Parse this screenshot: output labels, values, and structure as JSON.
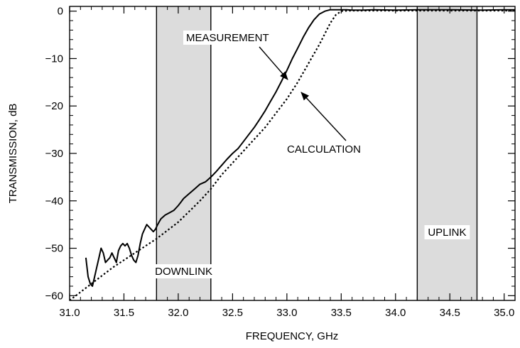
{
  "chart_data": {
    "type": "line",
    "title": "",
    "xlabel": "FREQUENCY, GHz",
    "ylabel": "TRANSMISSION, dB",
    "xlim": [
      31.0,
      35.1
    ],
    "ylim": [
      -61,
      1
    ],
    "x_ticks": [
      "31.0",
      "31.5",
      "32.0",
      "32.5",
      "33.0",
      "33.5",
      "34.0",
      "34.5",
      "35.0"
    ],
    "y_ticks": [
      "0",
      "−10",
      "−20",
      "−30",
      "−40",
      "−50",
      "−60"
    ],
    "grid": false,
    "bands": [
      {
        "label": "DOWNLINK",
        "x_start": 31.8,
        "x_end": 32.3,
        "color": "#dcdcdc"
      },
      {
        "label": "UPLINK",
        "x_start": 34.2,
        "x_end": 34.75,
        "color": "#dcdcdc"
      }
    ],
    "series": [
      {
        "name": "MEASUREMENT",
        "style": "solid",
        "color": "#000000",
        "x": [
          31.15,
          31.17,
          31.19,
          31.21,
          31.23,
          31.25,
          31.27,
          31.29,
          31.31,
          31.33,
          31.35,
          31.37,
          31.39,
          31.41,
          31.43,
          31.45,
          31.47,
          31.49,
          31.51,
          31.53,
          31.55,
          31.57,
          31.59,
          31.61,
          31.63,
          31.65,
          31.67,
          31.69,
          31.71,
          31.73,
          31.75,
          31.77,
          31.79,
          31.81,
          31.84,
          31.88,
          31.92,
          31.96,
          32.0,
          32.05,
          32.1,
          32.15,
          32.2,
          32.25,
          32.3,
          32.35,
          32.4,
          32.45,
          32.5,
          32.55,
          32.6,
          32.65,
          32.7,
          32.75,
          32.8,
          32.85,
          32.9,
          32.95,
          33.0,
          33.05,
          33.1,
          33.15,
          33.2,
          33.25,
          33.3,
          33.35,
          33.4,
          33.43,
          33.46,
          33.5,
          33.55,
          33.6,
          33.7,
          33.8,
          34.0,
          34.2,
          34.5,
          34.8,
          35.0,
          35.1
        ],
        "y": [
          -52.0,
          -56.0,
          -57.5,
          -58.0,
          -56.0,
          -54.0,
          -52.0,
          -50.0,
          -51.0,
          -53.0,
          -52.5,
          -52.0,
          -51.0,
          -52.0,
          -53.0,
          -50.5,
          -49.5,
          -49.0,
          -49.5,
          -49.0,
          -50.0,
          -51.5,
          -52.5,
          -53.0,
          -51.5,
          -49.0,
          -47.0,
          -46.0,
          -45.0,
          -45.5,
          -46.0,
          -46.5,
          -46.0,
          -45.0,
          -43.8,
          -43.0,
          -42.5,
          -42.0,
          -41.0,
          -39.5,
          -38.5,
          -37.5,
          -36.5,
          -36.0,
          -35.0,
          -33.8,
          -32.5,
          -31.2,
          -30.0,
          -29.0,
          -27.5,
          -26.0,
          -24.5,
          -22.8,
          -21.0,
          -19.0,
          -17.0,
          -14.8,
          -12.5,
          -10.0,
          -7.8,
          -5.5,
          -3.5,
          -1.8,
          -0.6,
          0.0,
          0.3,
          0.3,
          0.3,
          0.3,
          0.3,
          0.2,
          0.2,
          0.3,
          0.2,
          0.3,
          0.3,
          0.2,
          0.3,
          0.3
        ]
      },
      {
        "name": "CALCULATION",
        "style": "dotted",
        "color": "#000000",
        "x": [
          31.0,
          31.2,
          31.4,
          31.6,
          31.8,
          32.0,
          32.2,
          32.3,
          32.4,
          32.5,
          32.6,
          32.7,
          32.8,
          32.9,
          33.0,
          33.1,
          33.2,
          33.3,
          33.4,
          33.45,
          33.5,
          33.6,
          33.8,
          34.0,
          34.5,
          35.0,
          35.1
        ],
        "y": [
          -61.0,
          -57.5,
          -54.0,
          -51.0,
          -48.0,
          -44.5,
          -40.0,
          -37.5,
          -34.5,
          -32.0,
          -29.5,
          -27.0,
          -24.5,
          -21.5,
          -18.5,
          -15.0,
          -11.0,
          -7.0,
          -2.5,
          -0.8,
          0.0,
          0.1,
          0.1,
          0.1,
          0.1,
          0.1,
          0.1
        ]
      }
    ],
    "annotations": [
      {
        "text": "MEASUREMENT",
        "points_to": "MEASUREMENT"
      },
      {
        "text": "CALCULATION",
        "points_to": "CALCULATION"
      }
    ]
  }
}
